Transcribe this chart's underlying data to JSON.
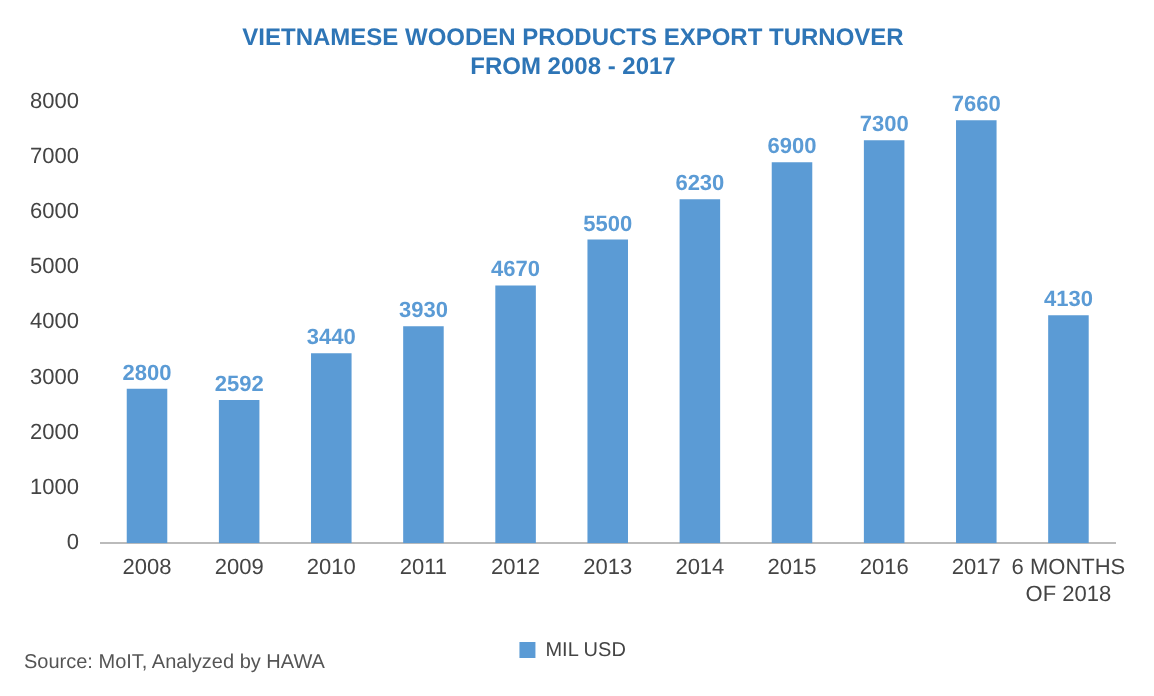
{
  "chart_data": {
    "type": "bar",
    "title": "VIETNAMESE WOODEN PRODUCTS EXPORT TURNOVER\nFROM 2008 - 2017",
    "categories": [
      "2008",
      "2009",
      "2010",
      "2011",
      "2012",
      "2013",
      "2014",
      "2015",
      "2016",
      "2017",
      "6 MONTHS OF 2018"
    ],
    "series": [
      {
        "name": "MIL USD",
        "color": "#5b9bd5",
        "values": [
          2800,
          2592,
          3440,
          3930,
          4670,
          5500,
          6230,
          6900,
          7300,
          7660,
          4130
        ]
      }
    ],
    "ylim": [
      0,
      8000
    ],
    "yticks": [
      0,
      1000,
      2000,
      3000,
      4000,
      5000,
      6000,
      7000,
      8000
    ],
    "grid": false,
    "legend": "bottom",
    "data_labels": true,
    "annotations": [
      "Source: MoIT, Analyzed by HAWA"
    ]
  }
}
